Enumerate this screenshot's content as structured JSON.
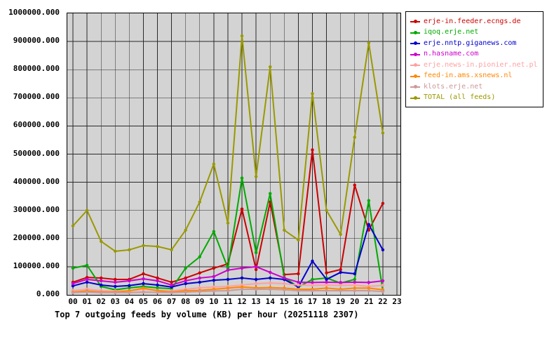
{
  "chart_data": {
    "type": "line",
    "title": "Top 7 outgoing feeds by volume (KB) per hour (20251118 2307)",
    "xlabel": "",
    "ylabel": "",
    "grid": true,
    "legend_position": "outside-top-right",
    "plot_background": "#d3d3d3",
    "grid_color": "#2a2a2a",
    "ylim": [
      0,
      1000000
    ],
    "x_labels": [
      "00",
      "01",
      "02",
      "03",
      "04",
      "05",
      "06",
      "07",
      "08",
      "09",
      "10",
      "11",
      "12",
      "13",
      "14",
      "15",
      "16",
      "17",
      "18",
      "19",
      "20",
      "21",
      "22",
      "23"
    ],
    "y_tick_labels": [
      "1000000.000",
      "900000.000",
      "800000.000",
      "700000.000",
      "600000.000",
      "500000.000",
      "400000.000",
      "300000.000",
      "200000.000",
      "100000.000",
      "0.000"
    ],
    "series": [
      {
        "name": "erje-in.feeder.ecngs.de",
        "color": "#cc0000",
        "values": [
          45000,
          62000,
          60000,
          55000,
          55000,
          75000,
          60000,
          45000,
          60000,
          78000,
          95000,
          110000,
          305000,
          90000,
          330000,
          72000,
          75000,
          515000,
          78000,
          90000,
          390000,
          230000,
          325000
        ]
      },
      {
        "name": "iqoq.erje.net",
        "color": "#00aa00",
        "values": [
          95000,
          105000,
          30000,
          18000,
          25000,
          30000,
          25000,
          22000,
          95000,
          135000,
          225000,
          95000,
          415000,
          150000,
          360000,
          62000,
          28000,
          55000,
          60000,
          42000,
          55000,
          335000,
          15000
        ]
      },
      {
        "name": "erje.nntp.giganews.com",
        "color": "#0000cc",
        "values": [
          32000,
          45000,
          35000,
          30000,
          33000,
          40000,
          35000,
          28000,
          40000,
          45000,
          52000,
          55000,
          60000,
          55000,
          60000,
          55000,
          28000,
          120000,
          55000,
          80000,
          75000,
          250000,
          160000
        ]
      },
      {
        "name": "n.hasname.com",
        "color": "#cc00cc",
        "values": [
          40000,
          55000,
          50000,
          45000,
          50000,
          57000,
          50000,
          35000,
          50000,
          60000,
          65000,
          88000,
          95000,
          100000,
          80000,
          60000,
          45000,
          44000,
          45000,
          44000,
          45000,
          44000,
          50000
        ]
      },
      {
        "name": "erje.news-in.pionier.net.pl",
        "color": "#ffa0a0",
        "values": [
          15000,
          20000,
          15000,
          14000,
          15000,
          20000,
          16000,
          14000,
          20000,
          25000,
          28000,
          30000,
          35000,
          40000,
          42000,
          40000,
          35000,
          34000,
          35000,
          34000,
          35000,
          30000,
          34000
        ]
      },
      {
        "name": "feed-in.ams.xsnews.nl",
        "color": "#ff8800",
        "values": [
          10000,
          14000,
          10000,
          10000,
          14000,
          24000,
          15000,
          10000,
          15000,
          16000,
          20000,
          24000,
          28000,
          25000,
          26000,
          24000,
          20000,
          20000,
          24000,
          20000,
          24000,
          24000,
          18000
        ]
      },
      {
        "name": "klots.erje.net",
        "color": "#cc9999",
        "values": [
          8000,
          10000,
          8000,
          8000,
          8000,
          10000,
          9000,
          8000,
          10000,
          12000,
          14000,
          15000,
          20000,
          20000,
          20000,
          18000,
          15000,
          15000,
          15000,
          15000,
          15000,
          15000,
          12000
        ]
      },
      {
        "name": "TOTAL (all feeds)",
        "color": "#999900",
        "values": [
          245000,
          300000,
          190000,
          155000,
          160000,
          175000,
          172000,
          160000,
          230000,
          330000,
          465000,
          255000,
          920000,
          420000,
          810000,
          230000,
          195000,
          715000,
          300000,
          215000,
          560000,
          895000,
          575000
        ]
      }
    ]
  }
}
